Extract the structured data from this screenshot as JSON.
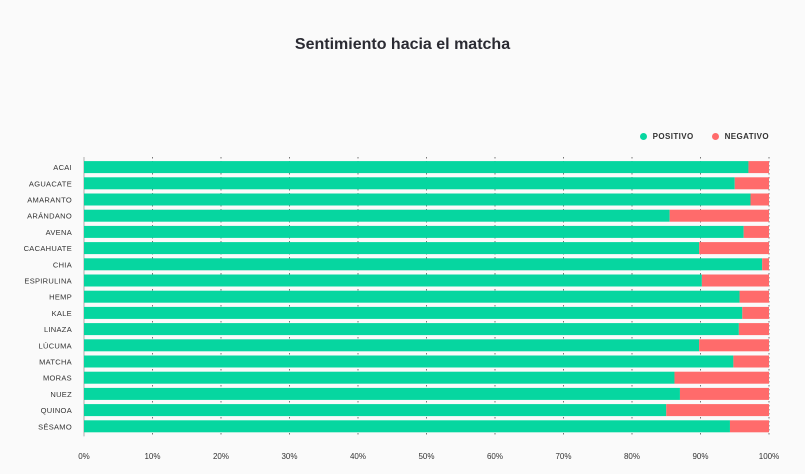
{
  "chart_data": {
    "type": "bar",
    "orientation": "horizontal",
    "stacked": "percent",
    "title": "Sentimiento hacia el matcha",
    "categories": [
      "ACAI",
      "AGUACATE",
      "AMARANTO",
      "ARÁNDANO",
      "AVENA",
      "CACAHUATE",
      "CHIA",
      "ESPIRULINA",
      "HEMP",
      "KALE",
      "LINAZA",
      "LÚCUMA",
      "MATCHA",
      "MORAS",
      "NUEZ",
      "QUINOA",
      "SÉSAMO"
    ],
    "series": [
      {
        "name": "POSITIVO",
        "color": "#06d6a0",
        "values": [
          97,
          95,
          97.3,
          85.5,
          96.3,
          89.8,
          99,
          90.2,
          95.7,
          96.1,
          95.6,
          89.8,
          94.8,
          86.2,
          87,
          85,
          94.3
        ]
      },
      {
        "name": "NEGATIVO",
        "color": "#ff6b6b",
        "values": [
          3,
          5,
          2.7,
          14.5,
          3.7,
          10.2,
          1,
          9.8,
          4.3,
          3.9,
          4.4,
          10.2,
          5.2,
          13.8,
          13,
          15,
          5.7
        ]
      }
    ],
    "x_ticks": [
      "0%",
      "10%",
      "20%",
      "30%",
      "40%",
      "50%",
      "60%",
      "70%",
      "80%",
      "90%",
      "100%"
    ],
    "xlim": [
      0,
      100
    ],
    "grid": "vertical-dotted",
    "legend_position": "top-right"
  }
}
